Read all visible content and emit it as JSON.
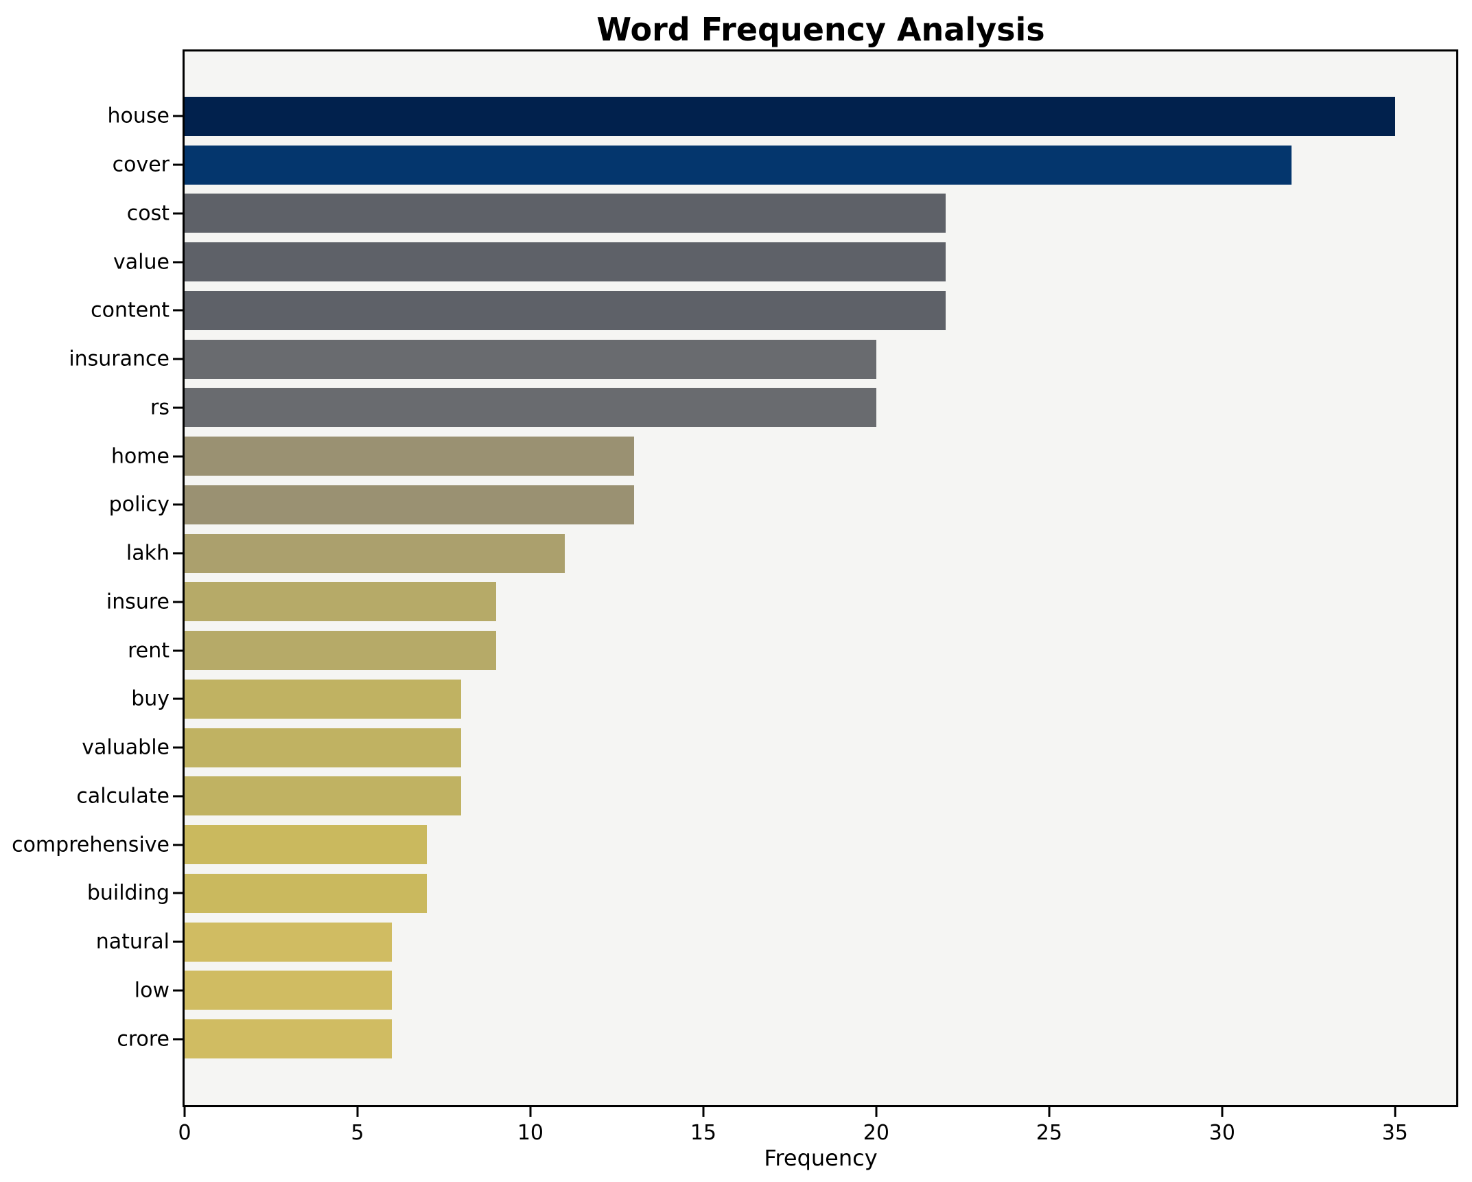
{
  "title": "Word Frequency Analysis",
  "xlabel": "Frequency",
  "chart_data": {
    "type": "bar",
    "orientation": "horizontal",
    "title": "Word Frequency Analysis",
    "xlabel": "Frequency",
    "ylabel": "",
    "categories": [
      "house",
      "cover",
      "cost",
      "value",
      "content",
      "insurance",
      "rs",
      "home",
      "policy",
      "lakh",
      "insure",
      "rent",
      "buy",
      "valuable",
      "calculate",
      "comprehensive",
      "building",
      "natural",
      "low",
      "crore"
    ],
    "values": [
      35,
      32,
      22,
      22,
      22,
      20,
      20,
      13,
      13,
      11,
      9,
      9,
      8,
      8,
      8,
      7,
      7,
      6,
      6,
      6
    ],
    "bar_colors": [
      "#01214d",
      "#04366d",
      "#5e6168",
      "#5e6168",
      "#5e6168",
      "#696b6f",
      "#696b6f",
      "#9a9172",
      "#9a9172",
      "#aba06d",
      "#b6aa68",
      "#b6aa68",
      "#c0b262",
      "#c0b262",
      "#c0b262",
      "#cab95e",
      "#cab95e",
      "#d0bc62",
      "#d0bc62",
      "#d0bc62"
    ],
    "x_ticks": [
      0,
      5,
      10,
      15,
      20,
      25,
      30,
      35
    ],
    "xlim": [
      0,
      36.77
    ],
    "grid": false,
    "legend_position": "none",
    "colormap": "cividis",
    "plot_background": "#f5f5f3",
    "figure_background": "#ffffff"
  }
}
